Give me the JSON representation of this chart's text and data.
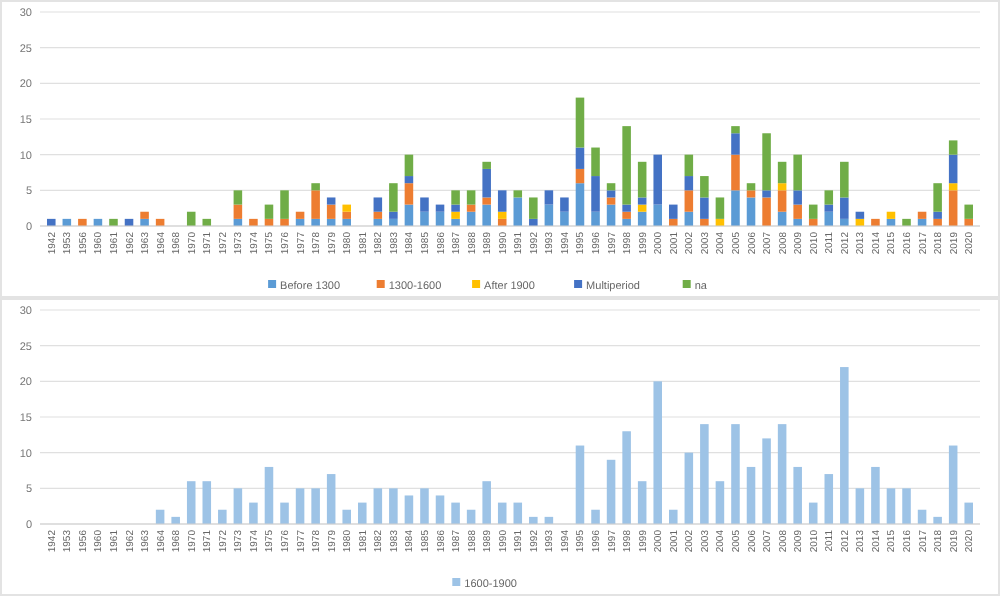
{
  "chart_data": [
    {
      "type": "bar",
      "stacked": true,
      "categories": [
        "1942",
        "1953",
        "1956",
        "1960",
        "1961",
        "1962",
        "1963",
        "1964",
        "1968",
        "1970",
        "1971",
        "1972",
        "1973",
        "1974",
        "1975",
        "1976",
        "1977",
        "1978",
        "1979",
        "1980",
        "1981",
        "1982",
        "1983",
        "1984",
        "1985",
        "1986",
        "1987",
        "1988",
        "1989",
        "1990",
        "1991",
        "1992",
        "1993",
        "1994",
        "1995",
        "1996",
        "1997",
        "1998",
        "1999",
        "2000",
        "2001",
        "2002",
        "2003",
        "2004",
        "2005",
        "2006",
        "2007",
        "2008",
        "2009",
        "2010",
        "2011",
        "2012",
        "2013",
        "2014",
        "2015",
        "2016",
        "2017",
        "2018",
        "2019",
        "2020"
      ],
      "series": [
        {
          "name": "Before 1300",
          "color": "#5b9bd5",
          "values": [
            0,
            1,
            0,
            1,
            0,
            0,
            1,
            0,
            0,
            0,
            0,
            0,
            1,
            0,
            0,
            0,
            1,
            1,
            1,
            1,
            0,
            1,
            1,
            3,
            2,
            2,
            1,
            2,
            3,
            0,
            4,
            0,
            3,
            2,
            6,
            2,
            3,
            1,
            2,
            3,
            0,
            2,
            0,
            0,
            5,
            4,
            0,
            2,
            1,
            0,
            2,
            1,
            0,
            0,
            1,
            0,
            1,
            0,
            0,
            0
          ]
        },
        {
          "name": "1300-1600",
          "color": "#ed7d31",
          "values": [
            0,
            0,
            1,
            0,
            0,
            0,
            1,
            1,
            0,
            0,
            0,
            0,
            2,
            1,
            1,
            1,
            1,
            4,
            2,
            1,
            0,
            1,
            0,
            3,
            0,
            0,
            0,
            1,
            1,
            1,
            0,
            0,
            0,
            0,
            2,
            0,
            1,
            1,
            0,
            0,
            1,
            3,
            1,
            0,
            5,
            1,
            4,
            3,
            2,
            1,
            0,
            0,
            0,
            1,
            0,
            0,
            1,
            1,
            5,
            1
          ]
        },
        {
          "name": "After 1900",
          "color": "#ffc000",
          "values": [
            0,
            0,
            0,
            0,
            0,
            0,
            0,
            0,
            0,
            0,
            0,
            0,
            0,
            0,
            0,
            0,
            0,
            0,
            0,
            1,
            0,
            0,
            0,
            0,
            0,
            0,
            1,
            0,
            0,
            1,
            0,
            0,
            0,
            0,
            0,
            0,
            0,
            0,
            1,
            0,
            0,
            0,
            0,
            1,
            0,
            0,
            0,
            1,
            0,
            0,
            0,
            0,
            1,
            0,
            1,
            0,
            0,
            0,
            1,
            0
          ]
        },
        {
          "name": "Multiperiod",
          "color": "#4472c4",
          "values": [
            1,
            0,
            0,
            0,
            0,
            1,
            0,
            0,
            0,
            0,
            0,
            0,
            0,
            0,
            0,
            0,
            0,
            0,
            1,
            0,
            0,
            2,
            1,
            1,
            2,
            1,
            1,
            0,
            4,
            3,
            0,
            1,
            2,
            2,
            3,
            5,
            1,
            1,
            1,
            7,
            2,
            2,
            3,
            0,
            3,
            0,
            1,
            0,
            2,
            0,
            1,
            3,
            1,
            0,
            0,
            0,
            0,
            1,
            4,
            0
          ]
        },
        {
          "name": "na",
          "color": "#70ad47",
          "values": [
            0,
            0,
            0,
            0,
            1,
            0,
            0,
            0,
            0,
            2,
            1,
            0,
            2,
            0,
            2,
            4,
            0,
            1,
            0,
            0,
            0,
            0,
            4,
            3,
            0,
            0,
            2,
            2,
            1,
            0,
            1,
            3,
            0,
            0,
            7,
            4,
            1,
            11,
            5,
            0,
            0,
            3,
            3,
            3,
            1,
            1,
            8,
            3,
            5,
            2,
            2,
            5,
            0,
            0,
            0,
            1,
            0,
            4,
            2,
            2
          ]
        }
      ],
      "ylim": [
        0,
        30
      ],
      "yticks": [
        0,
        5,
        10,
        15,
        20,
        25,
        30
      ],
      "grid": "y",
      "legend": "bottom"
    },
    {
      "type": "bar",
      "categories": [
        "1942",
        "1953",
        "1956",
        "1960",
        "1961",
        "1962",
        "1963",
        "1964",
        "1968",
        "1970",
        "1971",
        "1972",
        "1973",
        "1974",
        "1975",
        "1976",
        "1977",
        "1978",
        "1979",
        "1980",
        "1981",
        "1982",
        "1983",
        "1984",
        "1985",
        "1986",
        "1987",
        "1988",
        "1989",
        "1990",
        "1991",
        "1992",
        "1993",
        "1994",
        "1995",
        "1996",
        "1997",
        "1998",
        "1999",
        "2000",
        "2001",
        "2002",
        "2003",
        "2004",
        "2005",
        "2006",
        "2007",
        "2008",
        "2009",
        "2010",
        "2011",
        "2012",
        "2013",
        "2014",
        "2015",
        "2016",
        "2017",
        "2018",
        "2019",
        "2020"
      ],
      "series": [
        {
          "name": "1600-1900",
          "color": "#9dc3e6",
          "values": [
            0,
            0,
            0,
            0,
            0,
            0,
            0,
            2,
            1,
            6,
            6,
            2,
            5,
            3,
            8,
            3,
            5,
            5,
            7,
            2,
            3,
            5,
            5,
            4,
            5,
            4,
            3,
            2,
            6,
            3,
            3,
            1,
            1,
            0,
            11,
            2,
            9,
            13,
            6,
            20,
            2,
            10,
            14,
            6,
            14,
            8,
            12,
            14,
            8,
            3,
            7,
            22,
            5,
            8,
            5,
            5,
            2,
            1,
            11,
            3
          ]
        }
      ],
      "ylim": [
        0,
        30
      ],
      "yticks": [
        0,
        5,
        10,
        15,
        20,
        25,
        30
      ],
      "grid": "y",
      "legend": "bottom"
    }
  ]
}
